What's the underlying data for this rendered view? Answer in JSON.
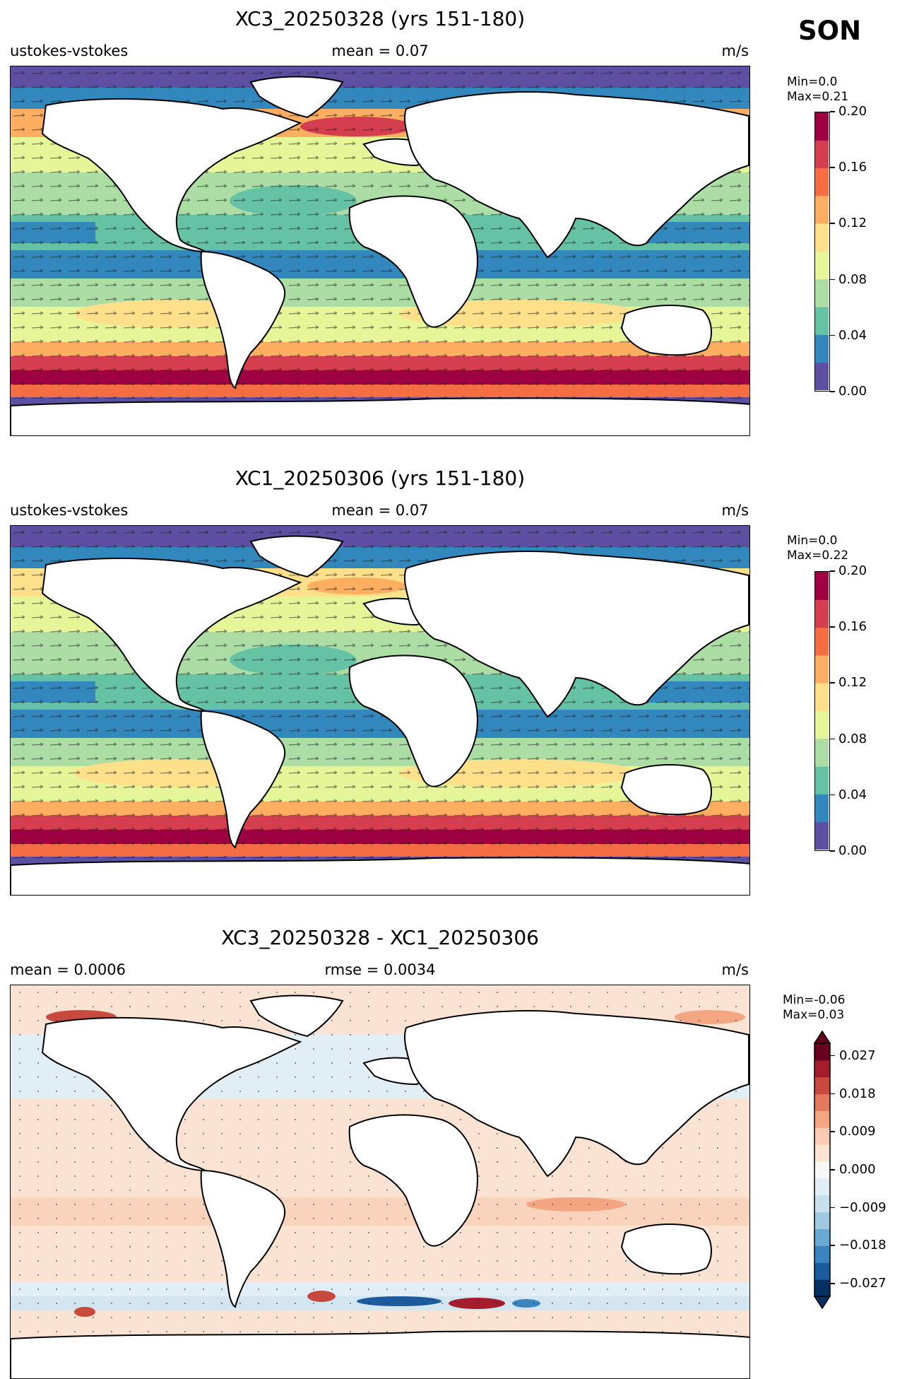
{
  "season": "SON",
  "units": "m/s",
  "panels": [
    {
      "title": "XC3_20250328 (yrs 151-180)",
      "left_label": "ustokes-vstokes",
      "center_label": "mean = 0.07",
      "right_label": "m/s",
      "min_label": "Min=0.0",
      "max_label": "Max=0.21",
      "colorbar_ticks": [
        "0.00",
        "0.04",
        "0.08",
        "0.12",
        "0.16",
        "0.20"
      ],
      "colorbar_colors": [
        "#5e4fa2",
        "#3288bd",
        "#66c2a5",
        "#abdda4",
        "#e6f598",
        "#fee08b",
        "#fdae61",
        "#f46d43",
        "#d53e4f",
        "#9e0142"
      ]
    },
    {
      "title": "XC1_20250306 (yrs 151-180)",
      "left_label": "ustokes-vstokes",
      "center_label": "mean = 0.07",
      "right_label": "m/s",
      "min_label": "Min=0.0",
      "max_label": "Max=0.22",
      "colorbar_ticks": [
        "0.00",
        "0.04",
        "0.08",
        "0.12",
        "0.16",
        "0.20"
      ],
      "colorbar_colors": [
        "#5e4fa2",
        "#3288bd",
        "#66c2a5",
        "#abdda4",
        "#e6f598",
        "#fee08b",
        "#fdae61",
        "#f46d43",
        "#d53e4f",
        "#9e0142"
      ]
    },
    {
      "title": "XC3_20250328 - XC1_20250306",
      "left_label": "mean = 0.0006",
      "center_label": "rmse = 0.0034",
      "right_label": "m/s",
      "min_label": "Min=-0.06",
      "max_label": "Max=0.03",
      "colorbar_ticks": [
        "−0.027",
        "−0.018",
        "−0.009",
        "0.000",
        "0.009",
        "0.018",
        "0.027"
      ],
      "colorbar_colors": [
        "#053061",
        "#1c5c9e",
        "#3a85bf",
        "#6aa9d1",
        "#9fcae1",
        "#c8dfec",
        "#e2eef5",
        "#f7f7f7",
        "#fbe3d4",
        "#f9ccb3",
        "#f4a683",
        "#e2795f",
        "#c84a3f",
        "#a51c2d",
        "#67001f"
      ]
    }
  ]
}
